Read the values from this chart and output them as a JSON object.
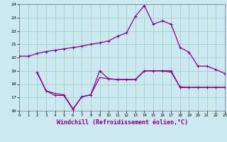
{
  "bg_color": "#cce8f0",
  "line_color": "#880088",
  "grid_color": "#99ccbb",
  "xlim": [
    0,
    23
  ],
  "ylim": [
    16,
    24
  ],
  "yticks": [
    16,
    17,
    18,
    19,
    20,
    21,
    22,
    23,
    24
  ],
  "xticks": [
    0,
    1,
    2,
    3,
    4,
    5,
    6,
    7,
    8,
    9,
    10,
    11,
    12,
    13,
    14,
    15,
    16,
    17,
    18,
    19,
    20,
    21,
    22,
    23
  ],
  "xlabel": "Windchill (Refroidissement éolien,°C)",
  "curve1_x": [
    0,
    1,
    2,
    3,
    4,
    5,
    6,
    7,
    8,
    9,
    10,
    11,
    12,
    13,
    14,
    15,
    16,
    17,
    18,
    19,
    20,
    21,
    22,
    23
  ],
  "curve1_y": [
    20.1,
    20.1,
    20.3,
    20.45,
    20.55,
    20.65,
    20.75,
    20.85,
    21.0,
    21.1,
    21.25,
    21.6,
    21.85,
    23.1,
    23.9,
    22.5,
    22.75,
    22.5,
    20.75,
    20.4,
    19.35,
    19.35,
    19.1,
    18.8
  ],
  "curve2_x": [
    2,
    3,
    4,
    5,
    6,
    7,
    8,
    9,
    10,
    11,
    12,
    13,
    14,
    15,
    16,
    17,
    18,
    19,
    20,
    21,
    22,
    23
  ],
  "curve2_y": [
    18.9,
    17.5,
    17.15,
    17.15,
    16.1,
    17.05,
    17.2,
    19.0,
    18.4,
    18.35,
    18.35,
    18.35,
    19.0,
    19.0,
    19.0,
    19.0,
    17.75,
    17.75,
    17.75,
    17.75,
    17.75,
    17.75
  ],
  "curve3_x": [
    2,
    3,
    4,
    5,
    6,
    7,
    8,
    9,
    10,
    11,
    12,
    13,
    14,
    15,
    16,
    17,
    18,
    19,
    20,
    21,
    22,
    23
  ],
  "curve3_y": [
    18.85,
    17.5,
    17.3,
    17.2,
    16.15,
    17.05,
    17.2,
    18.5,
    18.4,
    18.35,
    18.35,
    18.35,
    19.0,
    19.0,
    19.0,
    18.9,
    17.8,
    17.75,
    17.75,
    17.75,
    17.75,
    17.75
  ],
  "linewidth": 0.9,
  "markersize": 2.5
}
